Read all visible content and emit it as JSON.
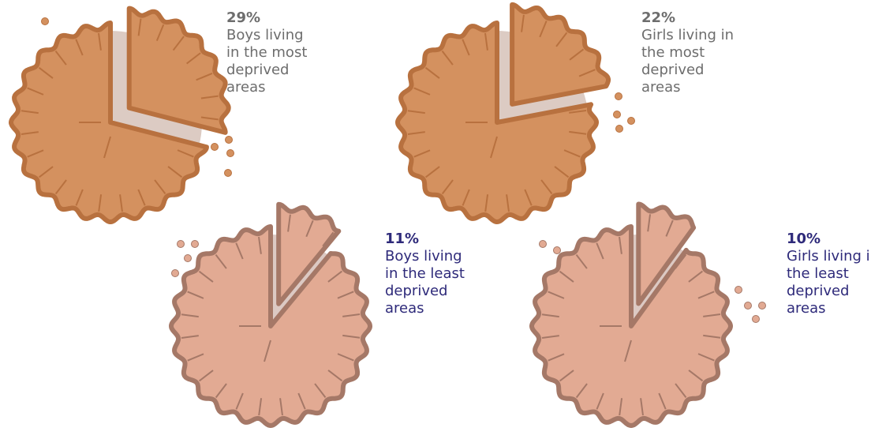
{
  "chart_data": [
    {
      "type": "pie",
      "values": [
        29
      ],
      "value_labels": [
        "29%"
      ],
      "label": "Boys living in the most deprived areas",
      "color": "#d4915f"
    },
    {
      "type": "pie",
      "values": [
        22
      ],
      "value_labels": [
        "22%"
      ],
      "label": "Girls living in the most deprived areas",
      "color": "#d4915f"
    },
    {
      "type": "pie",
      "values": [
        11
      ],
      "value_labels": [
        "11%"
      ],
      "label": "Boys living in the least deprived areas",
      "color": "#e2aa93"
    },
    {
      "type": "pie",
      "values": [
        10
      ],
      "value_labels": [
        "10%"
      ],
      "label": "Girls living in the least deprived areas",
      "color": "#e2aa93"
    }
  ]
}
